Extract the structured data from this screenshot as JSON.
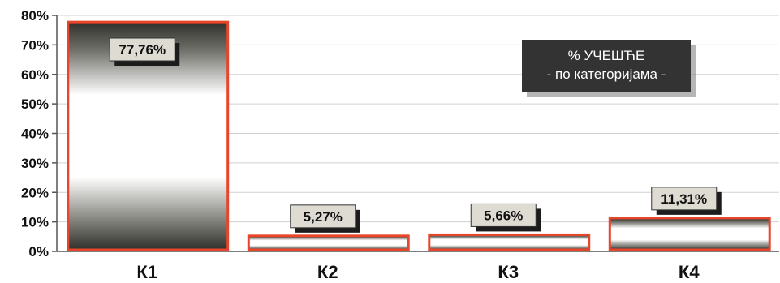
{
  "chart_data": {
    "type": "bar",
    "title": "% УЧЕШЋЕ",
    "subtitle": "- по категоријама -",
    "categories": [
      "К1",
      "К2",
      "К3",
      "К4"
    ],
    "values": [
      77.76,
      5.27,
      5.66,
      11.31
    ],
    "data_labels": [
      "77,76%",
      "5,27%",
      "5,66%",
      "11,31%"
    ],
    "y_ticks": [
      "0%",
      "10%",
      "20%",
      "30%",
      "40%",
      "50%",
      "60%",
      "70%",
      "80%"
    ],
    "ylim": [
      0,
      80
    ],
    "grid": true,
    "legend": "none",
    "title_placement": "top-right",
    "colors": {
      "bar_border": "#e8452a",
      "bar_dark": "#2f2f2b",
      "bar_light": "#ffffff",
      "label_box": "#dedbd2",
      "label_shadow": "#1c1c1c",
      "title_box": "#333333",
      "grid": "#d0d0d0",
      "axis": "#555555"
    }
  }
}
